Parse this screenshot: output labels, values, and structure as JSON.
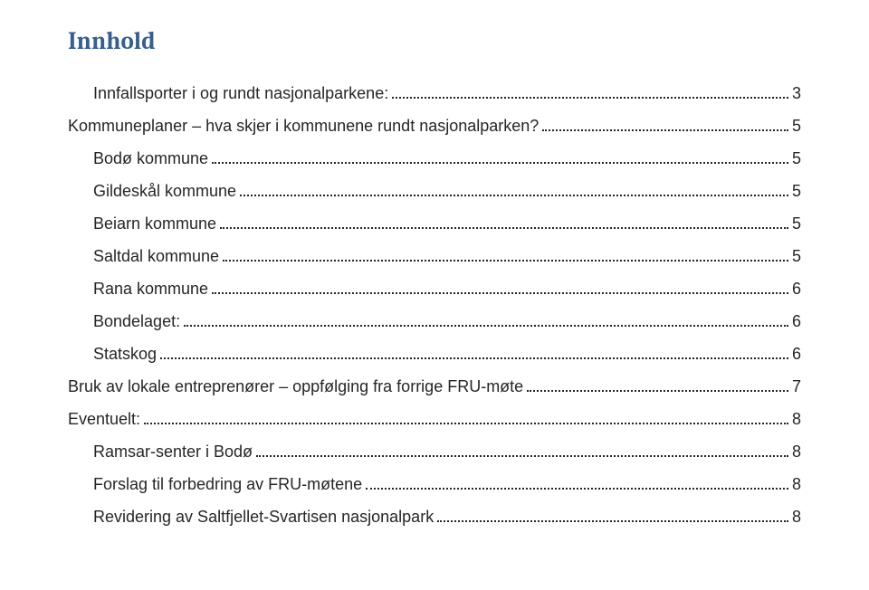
{
  "title": "Innhold",
  "colors": {
    "title": "#365f91",
    "text": "#262626",
    "background": "#ffffff",
    "dots": "#262626"
  },
  "typography": {
    "title_font": "Cambria, Georgia, serif",
    "title_fontsize": 27,
    "body_font": "Arial, Helvetica, sans-serif",
    "body_fontsize": 18
  },
  "toc": {
    "entries": [
      {
        "label": "Innfallsporter i og rundt nasjonalparkene:",
        "page": "3",
        "indent": 1
      },
      {
        "label": "Kommuneplaner – hva skjer i kommunene rundt nasjonalparken?",
        "page": "5",
        "indent": 0
      },
      {
        "label": "Bodø kommune",
        "page": "5",
        "indent": 1
      },
      {
        "label": "Gildeskål kommune",
        "page": "5",
        "indent": 1
      },
      {
        "label": "Beiarn kommune",
        "page": "5",
        "indent": 1
      },
      {
        "label": "Saltdal kommune",
        "page": "5",
        "indent": 1
      },
      {
        "label": "Rana kommune",
        "page": "6",
        "indent": 1
      },
      {
        "label": "Bondelaget:",
        "page": "6",
        "indent": 1
      },
      {
        "label": "Statskog",
        "page": "6",
        "indent": 1
      },
      {
        "label": "Bruk av lokale entreprenører – oppfølging fra forrige FRU-møte",
        "page": "7",
        "indent": 0
      },
      {
        "label": "Eventuelt:",
        "page": "8",
        "indent": 0
      },
      {
        "label": "Ramsar-senter i Bodø",
        "page": "8",
        "indent": 1
      },
      {
        "label": "Forslag til forbedring av FRU-møtene",
        "page": "8",
        "indent": 1
      },
      {
        "label": "Revidering av Saltfjellet-Svartisen nasjonalpark",
        "page": "8",
        "indent": 1
      }
    ]
  }
}
